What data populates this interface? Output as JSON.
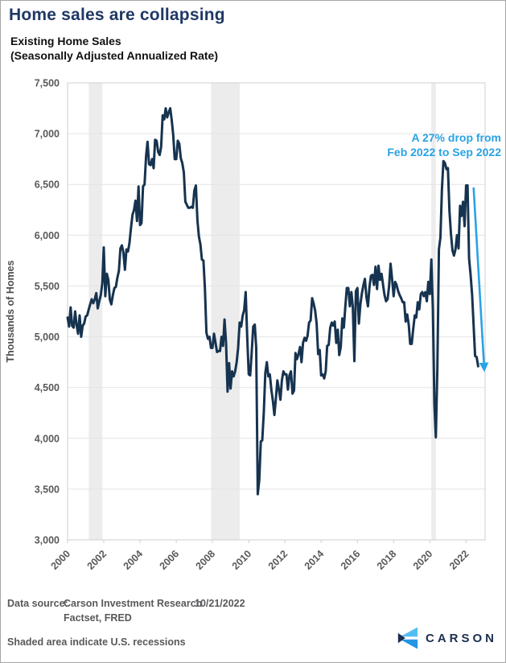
{
  "page": {
    "title": "Home sales are collapsing"
  },
  "chart": {
    "title_line1": "Existing Home Sales",
    "title_line2": "(Seasonally Adjusted Annualized Rate)",
    "y_axis_title": "Thousands of Homes"
  },
  "annotation": {
    "line1": "A 27% drop from",
    "line2": "Feb 2022 to Sep 2022"
  },
  "footer": {
    "source_label": "Data source:",
    "source_line1": "Carson Investment Research",
    "source_date": "10/21/2022",
    "source_line2": "Factset, FRED",
    "recession_note": "Shaded area indicate U.S. recessions"
  },
  "logo": {
    "wordmark": "CARSON"
  },
  "colors": {
    "title_navy": "#1F3864",
    "annotation_blue": "#29A3E5",
    "footer_gray": "#58595B",
    "logo_navy": "#1B2E4F",
    "logo_blue_light": "#54BEF2",
    "logo_blue_dark": "#2496E4"
  },
  "chart_data": {
    "type": "line",
    "title": "Existing Home Sales (Seasonally Adjusted Annualized Rate)",
    "xlabel": "",
    "ylabel": "Thousands of Homes",
    "ylim": [
      3000,
      7500
    ],
    "y_tick_step": 500,
    "x_start": "2000-01",
    "x_end": "2022-09",
    "x_tick_years": [
      2000,
      2002,
      2004,
      2006,
      2008,
      2010,
      2012,
      2014,
      2016,
      2018,
      2020,
      2022
    ],
    "grid": "horizontal-only",
    "legend": "none",
    "series": [
      {
        "name": "Existing Home Sales (SAAR, thousands)",
        "values": [
          5190,
          5100,
          5290,
          5110,
          5090,
          5250,
          5110,
          5030,
          5210,
          5000,
          5110,
          5130,
          5200,
          5210,
          5270,
          5320,
          5370,
          5330,
          5370,
          5430,
          5280,
          5350,
          5410,
          5530,
          5880,
          5400,
          5620,
          5560,
          5370,
          5320,
          5410,
          5480,
          5490,
          5580,
          5650,
          5870,
          5900,
          5830,
          5660,
          5860,
          5840,
          5920,
          6070,
          6200,
          6250,
          6340,
          6140,
          6480,
          6100,
          6120,
          6480,
          6500,
          6780,
          6920,
          6700,
          6690,
          6750,
          6660,
          6940,
          6930,
          6820,
          6790,
          6870,
          7180,
          7140,
          7250,
          7160,
          7210,
          7250,
          7130,
          6990,
          6750,
          6750,
          6930,
          6900,
          6760,
          6710,
          6620,
          6330,
          6300,
          6270,
          6270,
          6280,
          6270,
          6440,
          6490,
          6150,
          5990,
          5910,
          5760,
          5750,
          5480,
          5040,
          4980,
          5000,
          4890,
          4890,
          5030,
          4940,
          4850,
          4860,
          4860,
          5000,
          4910,
          5170,
          4940,
          4460,
          4740,
          4490,
          4660,
          4610,
          4660,
          4750,
          4890,
          5140,
          5100,
          5210,
          5260,
          5440,
          5000,
          4630,
          4620,
          4850,
          5100,
          5120,
          4890,
          3450,
          3590,
          3970,
          3980,
          4250,
          4640,
          4750,
          4610,
          4630,
          4480,
          4370,
          4230,
          4390,
          4570,
          4480,
          4380,
          4570,
          4660,
          4630,
          4630,
          4480,
          4620,
          4660,
          4440,
          4470,
          4840,
          4780,
          4830,
          4900,
          4750,
          4940,
          4990,
          4960,
          5010,
          5140,
          5160,
          5380,
          5330,
          5260,
          5130,
          4830,
          4870,
          4620,
          4630,
          4590,
          4660,
          4910,
          4920,
          5090,
          5140,
          5110,
          5150,
          4940,
          5070,
          4820,
          4900,
          5180,
          5090,
          5290,
          5480,
          5480,
          5300,
          5440,
          5290,
          4760,
          5450,
          5480,
          5130,
          5320,
          5430,
          5510,
          5570,
          5390,
          5300,
          5490,
          5600,
          5610,
          5510,
          5690,
          5470,
          5700,
          5560,
          5620,
          5510,
          5410,
          5350,
          5370,
          5500,
          5720,
          5570,
          5400,
          5540,
          5510,
          5450,
          5410,
          5380,
          5340,
          5340,
          5150,
          5220,
          5120,
          4930,
          4930,
          5080,
          5210,
          5190,
          5340,
          5270,
          5420,
          5440,
          5400,
          5440,
          5350,
          5540,
          5420,
          5760,
          5270,
          4330,
          4010,
          4700,
          5860,
          5980,
          6440,
          6730,
          6710,
          6650,
          6660,
          6240,
          6010,
          5850,
          5800,
          5860,
          6000,
          5870,
          6290,
          6190,
          6330,
          6090,
          6490,
          6490,
          5770,
          5610,
          5410,
          5120,
          4810,
          4800,
          4710
        ]
      }
    ],
    "recessions": [
      [
        "2001-03",
        "2001-11"
      ],
      [
        "2007-12",
        "2009-06"
      ],
      [
        "2020-02",
        "2020-04"
      ]
    ],
    "annotation_arrow": {
      "from": [
        "2022-06",
        6470
      ],
      "to": [
        "2023-01",
        4690
      ]
    },
    "colors": {
      "line": "#16334F",
      "arrow": "#29A3E5",
      "recession_band": "#ECECEC",
      "gridline": "#E4E4E4",
      "frame": "#CFCFCF"
    }
  }
}
